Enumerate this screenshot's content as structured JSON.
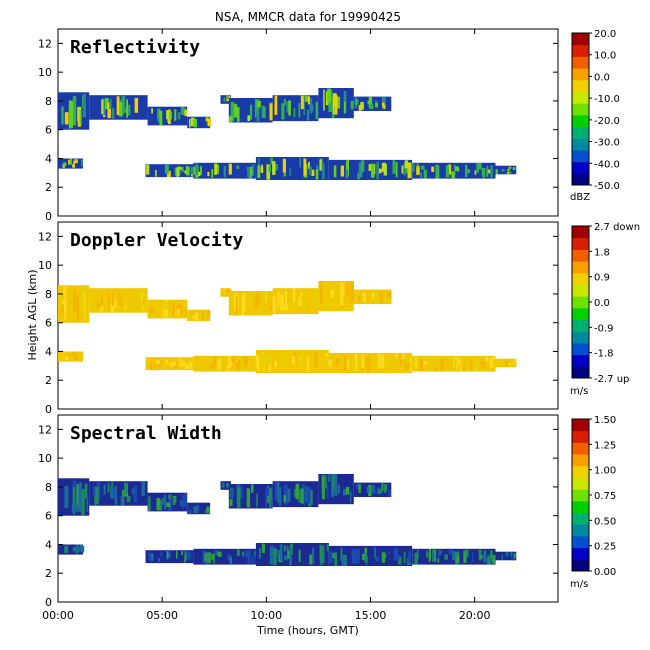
{
  "title": "NSA, MMCR data for 19990425",
  "colors": {
    "colorbar": [
      "#000080",
      "#0000c8",
      "#0050d0",
      "#008aa0",
      "#00b070",
      "#00d000",
      "#70e000",
      "#c8e800",
      "#f0d000",
      "#f8a000",
      "#f06000",
      "#d82000",
      "#a00000"
    ],
    "echo_reflectivity": [
      "#1a3aa8",
      "#2a8a8a",
      "#30b050",
      "#60d020",
      "#b8e020",
      "#f0d000"
    ],
    "echo_velocity": [
      "#f0c800",
      "#e8d000",
      "#f4b400",
      "#ffd820"
    ],
    "echo_width": [
      "#1a2a90",
      "#1a4ab0",
      "#1a6a9a",
      "#208860",
      "#30a040"
    ]
  },
  "chart_data": [
    {
      "type": "heatmap",
      "panel_label": "Reflectivity",
      "xlabel": "Time (hours, GMT)",
      "ylabel": "Height AGL (km)",
      "xlim": [
        0,
        24
      ],
      "ylim": [
        0,
        13
      ],
      "xticks": [
        {
          "v": 0,
          "label": "00:00"
        },
        {
          "v": 5,
          "label": "05:00"
        },
        {
          "v": 10,
          "label": "10:00"
        },
        {
          "v": 15,
          "label": "15:00"
        },
        {
          "v": 20,
          "label": "20:00"
        }
      ],
      "yticks": [
        0,
        2,
        4,
        6,
        8,
        10,
        12
      ],
      "colorbar": {
        "ticks": [
          "20.0",
          "10.0",
          "0.0",
          "-10.0",
          "-20.0",
          "-30.0",
          "-40.0",
          "-50.0"
        ],
        "unit": "dBZ"
      }
    },
    {
      "type": "heatmap",
      "panel_label": "Doppler Velocity",
      "xlim": [
        0,
        24
      ],
      "ylim": [
        0,
        13
      ],
      "yticks": [
        0,
        2,
        4,
        6,
        8,
        10,
        12
      ],
      "colorbar": {
        "ticks": [
          "2.7 down",
          "1.8",
          "0.9",
          "0.0",
          "-0.9",
          "-1.8",
          "-2.7 up"
        ],
        "unit": "m/s"
      }
    },
    {
      "type": "heatmap",
      "panel_label": "Spectral Width",
      "xlim": [
        0,
        24
      ],
      "ylim": [
        0,
        13
      ],
      "yticks": [
        0,
        2,
        4,
        6,
        8,
        10,
        12
      ],
      "colorbar": {
        "ticks": [
          "1.50",
          "1.25",
          "1.00",
          "0.75",
          "0.50",
          "0.25",
          "0.00"
        ],
        "unit": "m/s"
      }
    }
  ],
  "echo_regions": [
    {
      "t0": 0.0,
      "t1": 1.5,
      "h": [
        6.0,
        8.6
      ]
    },
    {
      "t0": 1.5,
      "t1": 4.3,
      "h": [
        6.7,
        8.4
      ]
    },
    {
      "t0": 4.3,
      "t1": 6.2,
      "h": [
        6.3,
        7.6
      ]
    },
    {
      "t0": 6.2,
      "t1": 7.3,
      "h": [
        6.1,
        6.9
      ]
    },
    {
      "t0": 7.8,
      "t1": 8.3,
      "h": [
        7.8,
        8.4
      ]
    },
    {
      "t0": 8.2,
      "t1": 10.3,
      "h": [
        6.5,
        8.2
      ]
    },
    {
      "t0": 10.3,
      "t1": 12.5,
      "h": [
        6.6,
        8.4
      ]
    },
    {
      "t0": 12.5,
      "t1": 14.2,
      "h": [
        6.8,
        8.9
      ]
    },
    {
      "t0": 14.2,
      "t1": 16.0,
      "h": [
        7.3,
        8.3
      ]
    },
    {
      "t0": 0.0,
      "t1": 1.2,
      "h": [
        3.3,
        4.0
      ]
    },
    {
      "t0": 4.2,
      "t1": 6.5,
      "h": [
        2.7,
        3.6
      ]
    },
    {
      "t0": 6.5,
      "t1": 9.5,
      "h": [
        2.6,
        3.7
      ]
    },
    {
      "t0": 9.5,
      "t1": 13.0,
      "h": [
        2.5,
        4.1
      ]
    },
    {
      "t0": 13.0,
      "t1": 17.0,
      "h": [
        2.5,
        3.9
      ]
    },
    {
      "t0": 17.0,
      "t1": 21.0,
      "h": [
        2.6,
        3.7
      ]
    },
    {
      "t0": 21.0,
      "t1": 22.0,
      "h": [
        2.9,
        3.5
      ]
    }
  ]
}
